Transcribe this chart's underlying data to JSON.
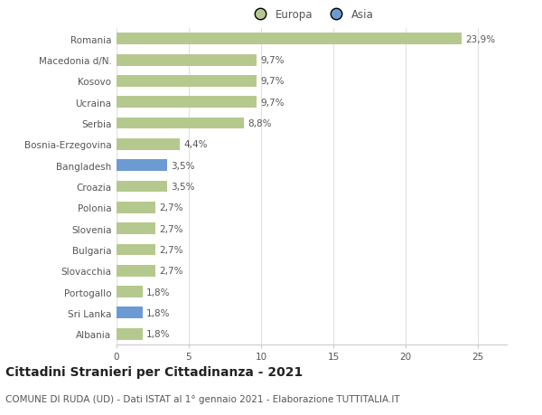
{
  "categories": [
    "Albania",
    "Sri Lanka",
    "Portogallo",
    "Slovacchia",
    "Bulgaria",
    "Slovenia",
    "Polonia",
    "Croazia",
    "Bangladesh",
    "Bosnia-Erzegovina",
    "Serbia",
    "Ucraina",
    "Kosovo",
    "Macedonia d/N.",
    "Romania"
  ],
  "values": [
    1.8,
    1.8,
    1.8,
    2.7,
    2.7,
    2.7,
    2.7,
    3.5,
    3.5,
    4.4,
    8.8,
    9.7,
    9.7,
    9.7,
    23.9
  ],
  "labels": [
    "1,8%",
    "1,8%",
    "1,8%",
    "2,7%",
    "2,7%",
    "2,7%",
    "2,7%",
    "3,5%",
    "3,5%",
    "4,4%",
    "8,8%",
    "9,7%",
    "9,7%",
    "9,7%",
    "23,9%"
  ],
  "colors": [
    "#b5c98e",
    "#6b9bd2",
    "#b5c98e",
    "#b5c98e",
    "#b5c98e",
    "#b5c98e",
    "#b5c98e",
    "#b5c98e",
    "#6b9bd2",
    "#b5c98e",
    "#b5c98e",
    "#b5c98e",
    "#b5c98e",
    "#b5c98e",
    "#b5c98e"
  ],
  "europa_color": "#b5c98e",
  "asia_color": "#6b9bd2",
  "title": "Cittadini Stranieri per Cittadinanza - 2021",
  "subtitle": "COMUNE DI RUDA (UD) - Dati ISTAT al 1° gennaio 2021 - Elaborazione TUTTITALIA.IT",
  "xlim": [
    0,
    27
  ],
  "xticks": [
    0,
    5,
    10,
    15,
    20,
    25
  ],
  "background_color": "#ffffff",
  "bar_height": 0.55,
  "label_fontsize": 7.5,
  "tick_fontsize": 7.5,
  "title_fontsize": 10,
  "subtitle_fontsize": 7.5,
  "legend_fontsize": 8.5,
  "grid_color": "#e0e0e0",
  "bar_label_color": "#555555",
  "tick_label_color": "#555555"
}
